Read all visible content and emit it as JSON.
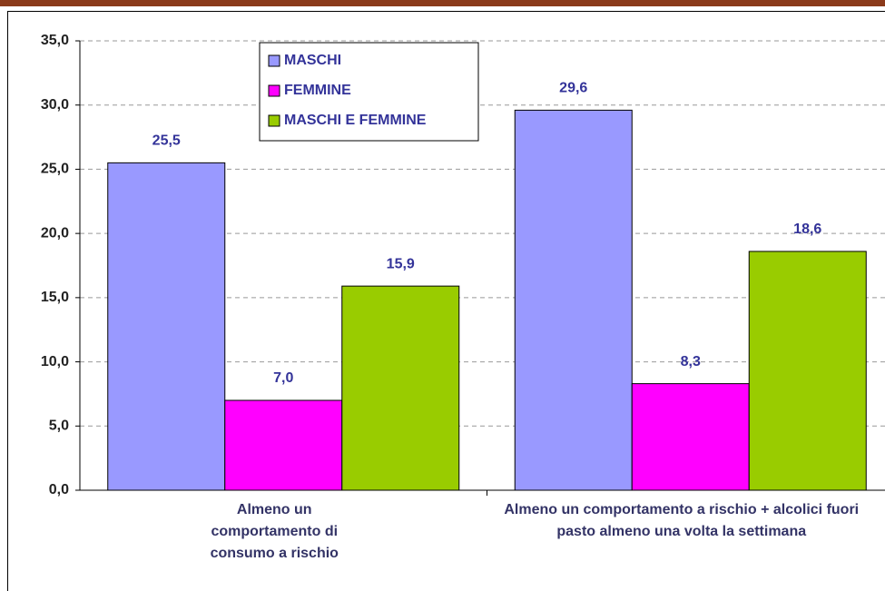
{
  "chart_data": {
    "type": "bar",
    "categories": [
      "Almeno un comportamento di consumo a rischio",
      "Almeno un comportamento a rischio + alcolici fuori pasto almeno una volta la settimana"
    ],
    "series": [
      {
        "name": "MASCHI",
        "color": "#9999ff",
        "values": [
          25.5,
          29.6
        ],
        "value_labels": [
          "25,5",
          "29,6"
        ]
      },
      {
        "name": "FEMMINE",
        "color": "#ff00ff",
        "values": [
          7.0,
          8.3
        ],
        "value_labels": [
          "7,0",
          "8,3"
        ]
      },
      {
        "name": "MASCHI E FEMMINE",
        "color": "#99cc00",
        "values": [
          15.9,
          18.6
        ],
        "value_labels": [
          "15,9",
          "18,6"
        ]
      }
    ],
    "ylim": [
      0,
      35
    ],
    "yticks": [
      {
        "value": 0,
        "label": "0,0"
      },
      {
        "value": 5,
        "label": "5,0"
      },
      {
        "value": 10,
        "label": "10,0"
      },
      {
        "value": 15,
        "label": "15,0"
      },
      {
        "value": 20,
        "label": "20,0"
      },
      {
        "value": 25,
        "label": "25,0"
      },
      {
        "value": 30,
        "label": "30,0"
      },
      {
        "value": 35,
        "label": "35,0"
      }
    ],
    "grid": true,
    "legend": "top-left"
  }
}
